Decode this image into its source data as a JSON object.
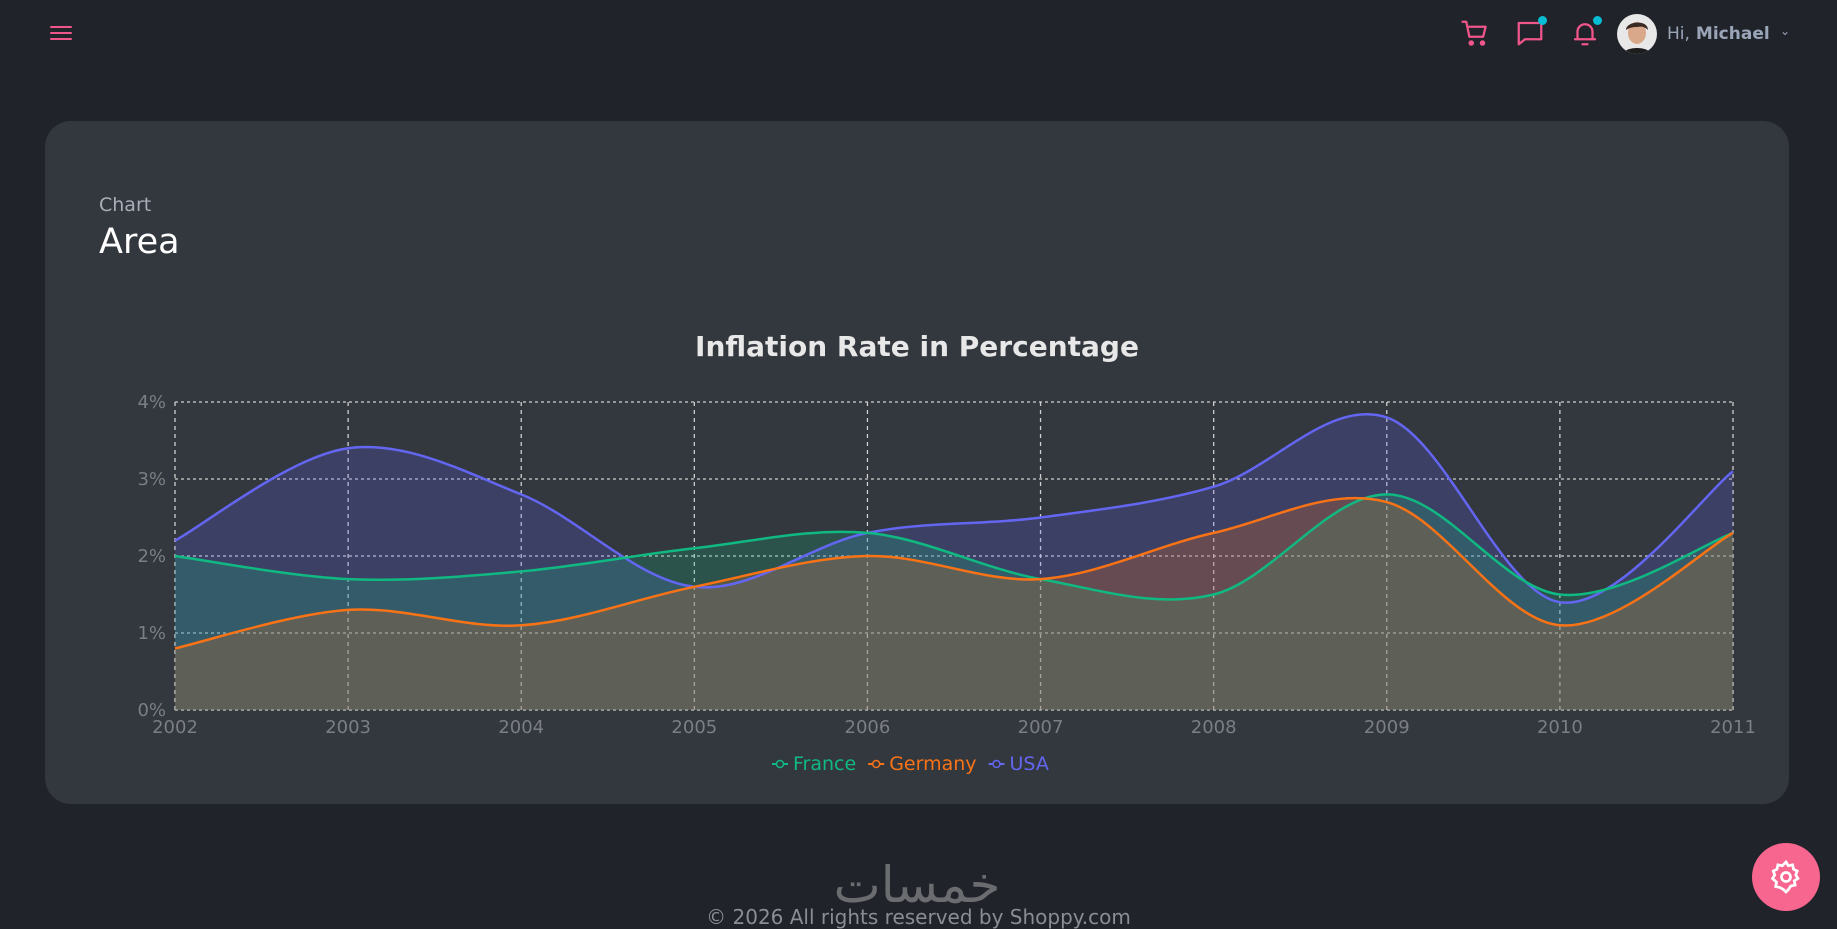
{
  "header": {
    "greeting": "Hi,",
    "user_name": "Michael",
    "icons": [
      "menu-icon",
      "cart-icon",
      "chat-icon",
      "bell-icon",
      "chevron-down-icon"
    ]
  },
  "page": {
    "category": "Chart",
    "title": "Area"
  },
  "colors": {
    "accent": "#f0568a",
    "badge": "#06bed3",
    "france": "#10b981",
    "germany": "#f97316",
    "usa": "#6366f1"
  },
  "chart_data": {
    "type": "area",
    "title": "Inflation Rate in Percentage",
    "x": [
      "2002",
      "2003",
      "2004",
      "2005",
      "2006",
      "2007",
      "2008",
      "2009",
      "2010",
      "2011"
    ],
    "yticks": [
      "0%",
      "1%",
      "2%",
      "3%",
      "4%"
    ],
    "ylim": [
      0,
      4
    ],
    "grid": true,
    "legend": "bottom",
    "series": [
      {
        "name": "France",
        "color": "#10b981",
        "values": [
          2.0,
          1.7,
          1.8,
          2.1,
          2.3,
          1.7,
          1.5,
          2.8,
          1.5,
          2.3
        ]
      },
      {
        "name": "Germany",
        "color": "#f97316",
        "values": [
          0.8,
          1.3,
          1.1,
          1.6,
          2.0,
          1.7,
          2.3,
          2.7,
          1.1,
          2.3
        ]
      },
      {
        "name": "USA",
        "color": "#6366f1",
        "values": [
          2.2,
          3.4,
          2.8,
          1.6,
          2.3,
          2.5,
          2.9,
          3.8,
          1.4,
          3.1
        ]
      }
    ]
  },
  "footer": {
    "logo_text": "خمسات",
    "copyright": "© 2026 All rights reserved by Shoppy.com"
  }
}
